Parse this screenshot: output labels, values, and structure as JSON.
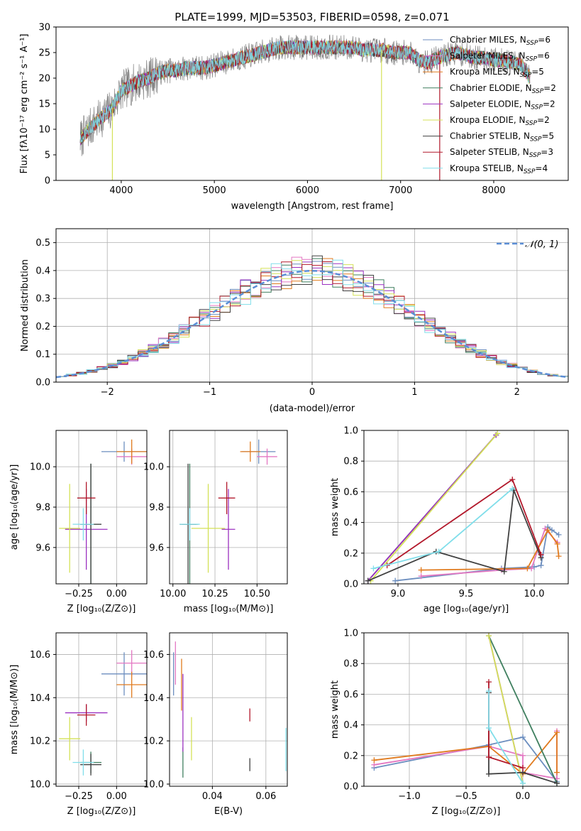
{
  "figure": {
    "background": "#ffffff"
  },
  "chart_data": [
    {
      "id": "spectrum",
      "type": "line",
      "title": "PLATE=1999, MJD=53503, FIBERID=0598, z=0.071",
      "xlabel": "wavelength [Angstrom, rest frame]",
      "ylabel": "Flux [fλ10⁻¹⁷ erg cm⁻² s⁻¹ A⁻¹]",
      "xlim": [
        3300,
        8800
      ],
      "ylim": [
        0,
        30
      ],
      "xticks": [
        4000,
        5000,
        6000,
        7000,
        8000
      ],
      "yticks": [
        0,
        5,
        10,
        15,
        20,
        25,
        30
      ],
      "grid": false,
      "legend_position": "upper right",
      "data_color": "#808080",
      "data_range": [
        3560,
        8390
      ],
      "continuum": {
        "x": [
          3560,
          3650,
          3800,
          3900,
          4000,
          4100,
          4200,
          4300,
          4400,
          4500,
          4600,
          4700,
          4800,
          4900,
          5000,
          5100,
          5200,
          5300,
          5400,
          5500,
          5600,
          5700,
          5800,
          5900,
          6000,
          6100,
          6200,
          6300,
          6400,
          6500,
          6600,
          6700,
          6800,
          6900,
          7000,
          7100,
          7200,
          7300,
          7400,
          7500,
          7600,
          7700,
          7800,
          7900,
          8000,
          8100,
          8200,
          8300,
          8390
        ],
        "y": [
          8,
          10,
          12.5,
          14,
          17.5,
          18.5,
          19.5,
          20,
          21,
          21.5,
          21.5,
          22,
          22,
          22,
          22.5,
          23,
          23.5,
          24,
          24.5,
          25,
          25.5,
          26,
          26,
          26,
          26,
          26,
          26,
          26,
          26,
          26,
          25.5,
          25.5,
          25.5,
          25,
          25,
          25,
          23.5,
          23,
          24,
          24.5,
          25,
          24.5,
          24,
          24,
          23.5,
          23.5,
          23,
          22.5,
          20
        ]
      },
      "series": [
        {
          "name": "Chabrier MILES, N_SSP=6",
          "nssp": 6,
          "color": "#6c8ebf"
        },
        {
          "name": "Salpeter MILES, N_SSP=6",
          "nssp": 6,
          "color": "#e377c2"
        },
        {
          "name": "Kroupa MILES, N_SSP=5",
          "nssp": 5,
          "color": "#e07b1f"
        },
        {
          "name": "Chabrier ELODIE, N_SSP=2",
          "nssp": 2,
          "color": "#3f7f5f"
        },
        {
          "name": "Salpeter ELODIE, N_SSP=2",
          "nssp": 2,
          "color": "#9b30c0"
        },
        {
          "name": "Kroupa ELODIE, N_SSP=2",
          "nssp": 2,
          "color": "#d4e157"
        },
        {
          "name": "Chabrier STELIB, N_SSP=5",
          "nssp": 5,
          "color": "#404040"
        },
        {
          "name": "Salpeter STELIB, N_SSP=3",
          "nssp": 3,
          "color": "#b2182b"
        },
        {
          "name": "Kroupa STELIB, N_SSP=4",
          "nssp": 4,
          "color": "#80deea"
        }
      ],
      "legend": [
        {
          "pre": "Chabrier MILES, N",
          "sub": "SSP",
          "post": "=6"
        },
        {
          "pre": "Salpeter MILES, N",
          "sub": "SSP",
          "post": "=6"
        },
        {
          "pre": "Kroupa MILES, N",
          "sub": "SSP",
          "post": "=5"
        },
        {
          "pre": "Chabrier ELODIE, N",
          "sub": "SSP",
          "post": "=2"
        },
        {
          "pre": "Salpeter ELODIE, N",
          "sub": "SSP",
          "post": "=2"
        },
        {
          "pre": "Kroupa ELODIE, N",
          "sub": "SSP",
          "post": "=2"
        },
        {
          "pre": "Chabrier STELIB, N",
          "sub": "SSP",
          "post": "=5"
        },
        {
          "pre": "Salpeter STELIB, N",
          "sub": "SSP",
          "post": "=3"
        },
        {
          "pre": "Kroupa STELIB, N",
          "sub": "SSP",
          "post": "=4"
        }
      ],
      "spikes": [
        {
          "x": 3905,
          "y_bottom": 0,
          "color": "#d4e157"
        },
        {
          "x": 6795,
          "y_bottom": 0,
          "color": "#d4e157"
        },
        {
          "x": 7420,
          "y_bottom": 0,
          "color": "#b2182b"
        }
      ]
    },
    {
      "id": "residuals",
      "type": "area",
      "xlabel": "(data-model)/error",
      "ylabel": "Normed distribution",
      "xlim": [
        -2.5,
        2.5
      ],
      "ylim": [
        0,
        0.55
      ],
      "xticks": [
        -2,
        -1,
        0,
        1,
        2
      ],
      "xtick_labels": [
        "−2",
        "−1",
        "0",
        "1",
        "2"
      ],
      "yticks": [
        0,
        0.1,
        0.2,
        0.3,
        0.4,
        0.5
      ],
      "ytick_labels": [
        "0.0",
        "0.1",
        "0.2",
        "0.3",
        "0.4",
        "0.5"
      ],
      "grid": true,
      "legend_position": "upper right",
      "legend_label": "𝒩(0, 1)",
      "gaussian": {
        "mu": 0,
        "sigma": 1,
        "color": "#5b8ed6",
        "dashed": true
      },
      "bin_width": 0.1,
      "bin_start": -2.5
    },
    {
      "id": "age-vs-Z",
      "type": "scatter",
      "xlabel": "Z [log₁₀(Z/Z⊙)]",
      "ylabel": "age  [log₁₀(age/yr)]",
      "xlim": [
        -0.4,
        0.2
      ],
      "ylim": [
        9.42,
        10.18
      ],
      "xticks": [
        -0.25,
        0.0
      ],
      "xtick_labels": [
        "−0.25",
        "0.00"
      ],
      "yticks": [
        9.6,
        9.8,
        10.0
      ],
      "ytick_labels": [
        "9.6",
        "9.8",
        "10.0"
      ],
      "grid": true,
      "points": [
        {
          "x": 0.05,
          "y": 10.075,
          "xerr": 0.15,
          "yerr": 0.05,
          "color": "#6c8ebf"
        },
        {
          "x": 0.1,
          "y": 10.05,
          "xerr": 0.1,
          "yerr": 0.04,
          "color": "#e377c2"
        },
        {
          "x": 0.1,
          "y": 10.075,
          "xerr": 0.1,
          "yerr": 0.06,
          "color": "#e07b1f"
        },
        {
          "x": -0.17,
          "y": 9.715,
          "xerr": 0.07,
          "yerr": 0.3,
          "color": "#3f7f5f"
        },
        {
          "x": -0.2,
          "y": 9.69,
          "xerr": 0.14,
          "yerr": 0.2,
          "color": "#9b30c0"
        },
        {
          "x": -0.31,
          "y": 9.695,
          "xerr": 0.07,
          "yerr": 0.22,
          "color": "#d4e157"
        },
        {
          "x": -0.17,
          "y": 9.715,
          "xerr": 0.07,
          "yerr": 0.3,
          "color": "#404040"
        },
        {
          "x": -0.2,
          "y": 9.845,
          "xerr": 0.06,
          "yerr": 0.08,
          "color": "#b2182b"
        },
        {
          "x": -0.22,
          "y": 9.715,
          "xerr": 0.07,
          "yerr": 0.08,
          "color": "#80deea"
        }
      ]
    },
    {
      "id": "age-vs-mass",
      "type": "scatter",
      "xlabel": "mass [log₁₀(M/M⊙)]",
      "ylabel": "",
      "xlim": [
        9.98,
        10.68
      ],
      "ylim": [
        9.42,
        10.18
      ],
      "xticks": [
        10.0,
        10.25,
        10.5
      ],
      "xtick_labels": [
        "10.00",
        "10.25",
        "10.50"
      ],
      "yticks": [
        9.6,
        9.8,
        10.0
      ],
      "ytick_labels": [
        "9.6",
        "9.8",
        "10.0"
      ],
      "grid": true,
      "points": [
        {
          "x": 10.51,
          "y": 10.075,
          "xerr": 0.1,
          "yerr": 0.06,
          "color": "#6c8ebf"
        },
        {
          "x": 10.56,
          "y": 10.05,
          "xerr": 0.06,
          "yerr": 0.04,
          "color": "#e377c2"
        },
        {
          "x": 10.46,
          "y": 10.075,
          "xerr": 0.06,
          "yerr": 0.05,
          "color": "#e07b1f"
        },
        {
          "x": 10.1,
          "y": 9.715,
          "xerr": 0.05,
          "yerr": 0.3,
          "color": "#3f7f5f"
        },
        {
          "x": 10.33,
          "y": 9.69,
          "xerr": 0.04,
          "yerr": 0.2,
          "color": "#9b30c0"
        },
        {
          "x": 10.21,
          "y": 9.695,
          "xerr": 0.1,
          "yerr": 0.22,
          "color": "#d4e157"
        },
        {
          "x": 10.09,
          "y": 9.715,
          "xerr": 0.05,
          "yerr": 0.3,
          "color": "#404040"
        },
        {
          "x": 10.32,
          "y": 9.845,
          "xerr": 0.05,
          "yerr": 0.08,
          "color": "#b2182b"
        },
        {
          "x": 10.1,
          "y": 9.715,
          "xerr": 0.06,
          "yerr": 0.08,
          "color": "#80deea"
        }
      ]
    },
    {
      "id": "weight-vs-age",
      "type": "line",
      "xlabel": "age  [log₁₀(age/yr)]",
      "ylabel": "mass weight",
      "xlim": [
        8.75,
        10.25
      ],
      "ylim": [
        0,
        1
      ],
      "xticks": [
        9.0,
        9.5,
        10.0
      ],
      "xtick_labels": [
        "9.0",
        "9.5",
        "10.0"
      ],
      "yticks": [
        0,
        0.2,
        0.4,
        0.6,
        0.8,
        1.0
      ],
      "ytick_labels": [
        "0.0",
        "0.2",
        "0.4",
        "0.6",
        "0.8",
        "1.0"
      ],
      "grid": true,
      "series": [
        {
          "color": "#6c8ebf",
          "x": [
            8.98,
            9.76,
            10.0,
            10.05,
            10.1,
            10.13,
            10.18
          ],
          "y": [
            0.02,
            0.1,
            0.11,
            0.12,
            0.37,
            0.35,
            0.32
          ]
        },
        {
          "color": "#e377c2",
          "x": [
            9.17,
            9.76,
            9.98,
            10.08,
            10.17
          ],
          "y": [
            0.05,
            0.09,
            0.1,
            0.36,
            0.27
          ]
        },
        {
          "color": "#e07b1f",
          "x": [
            9.17,
            9.95,
            10.1,
            10.17,
            10.18
          ],
          "y": [
            0.09,
            0.1,
            0.35,
            0.26,
            0.18
          ]
        },
        {
          "color": "#3f7f5f",
          "x": [
            8.78,
            9.72
          ],
          "y": [
            0.02,
            0.97
          ]
        },
        {
          "color": "#9b30c0",
          "x": [
            8.78,
            9.72
          ],
          "y": [
            0.02,
            0.97
          ]
        },
        {
          "color": "#d4e157",
          "x": [
            8.8,
            9.73
          ],
          "y": [
            0.02,
            0.98
          ]
        },
        {
          "color": "#404040",
          "x": [
            8.78,
            9.28,
            9.78,
            9.85,
            10.05
          ],
          "y": [
            0.02,
            0.21,
            0.08,
            0.61,
            0.17
          ]
        },
        {
          "color": "#b2182b",
          "x": [
            8.92,
            9.84,
            10.05
          ],
          "y": [
            0.12,
            0.68,
            0.19
          ]
        },
        {
          "color": "#80deea",
          "x": [
            8.82,
            9.3,
            9.84
          ],
          "y": [
            0.1,
            0.21,
            0.62
          ]
        }
      ]
    },
    {
      "id": "mass-vs-Z",
      "type": "scatter",
      "xlabel": "Z [log₁₀(Z/Z⊙)]",
      "ylabel": "mass [log₁₀(M/M⊙)]",
      "xlim": [
        -0.4,
        0.2
      ],
      "ylim": [
        9.99,
        10.7
      ],
      "xticks": [
        -0.25,
        0.0
      ],
      "xtick_labels": [
        "−0.25",
        "0.00"
      ],
      "yticks": [
        10.0,
        10.2,
        10.4,
        10.6
      ],
      "ytick_labels": [
        "10.0",
        "10.2",
        "10.4",
        "10.6"
      ],
      "grid": true,
      "points": [
        {
          "x": 0.05,
          "y": 10.51,
          "xerr": 0.15,
          "yerr": 0.1,
          "color": "#6c8ebf"
        },
        {
          "x": 0.1,
          "y": 10.56,
          "xerr": 0.1,
          "yerr": 0.06,
          "color": "#e377c2"
        },
        {
          "x": 0.1,
          "y": 10.46,
          "xerr": 0.1,
          "yerr": 0.06,
          "color": "#e07b1f"
        },
        {
          "x": -0.17,
          "y": 10.1,
          "xerr": 0.07,
          "yerr": 0.05,
          "color": "#3f7f5f"
        },
        {
          "x": -0.2,
          "y": 10.33,
          "xerr": 0.14,
          "yerr": 0.04,
          "color": "#9b30c0"
        },
        {
          "x": -0.31,
          "y": 10.21,
          "xerr": 0.07,
          "yerr": 0.1,
          "color": "#d4e157"
        },
        {
          "x": -0.17,
          "y": 10.09,
          "xerr": 0.07,
          "yerr": 0.05,
          "color": "#404040"
        },
        {
          "x": -0.2,
          "y": 10.32,
          "xerr": 0.06,
          "yerr": 0.05,
          "color": "#b2182b"
        },
        {
          "x": -0.22,
          "y": 10.1,
          "xerr": 0.07,
          "yerr": 0.06,
          "color": "#80deea"
        }
      ]
    },
    {
      "id": "mass-vs-EBV",
      "type": "scatter",
      "xlabel": "E(B-V)",
      "ylabel": "",
      "xlim": [
        0.024,
        0.068
      ],
      "ylim": [
        9.99,
        10.7
      ],
      "xticks": [
        0.04,
        0.06
      ],
      "xtick_labels": [
        "0.04",
        "0.06"
      ],
      "yticks": [
        10.0,
        10.2,
        10.4,
        10.6
      ],
      "ytick_labels": [
        "10.0",
        "10.2",
        "10.4",
        "10.6"
      ],
      "grid": true,
      "points": [
        {
          "x": 0.0255,
          "y": 10.51,
          "xerr": 0,
          "yerr": 0.1,
          "color": "#6c8ebf"
        },
        {
          "x": 0.0262,
          "y": 10.56,
          "xerr": 0,
          "yerr": 0.1,
          "color": "#e377c2"
        },
        {
          "x": 0.0285,
          "y": 10.46,
          "xerr": 0,
          "yerr": 0.12,
          "color": "#e07b1f"
        },
        {
          "x": 0.029,
          "y": 10.1,
          "xerr": 0,
          "yerr": 0.07,
          "color": "#3f7f5f"
        },
        {
          "x": 0.029,
          "y": 10.33,
          "xerr": 0,
          "yerr": 0.18,
          "color": "#9b30c0"
        },
        {
          "x": 0.0322,
          "y": 10.21,
          "xerr": 0,
          "yerr": 0.1,
          "color": "#d4e157"
        },
        {
          "x": 0.054,
          "y": 10.09,
          "xerr": 0,
          "yerr": 0.03,
          "color": "#404040"
        },
        {
          "x": 0.054,
          "y": 10.32,
          "xerr": 0,
          "yerr": 0.03,
          "color": "#b2182b"
        },
        {
          "x": 0.0675,
          "y": 10.16,
          "xerr": 0,
          "yerr": 0.1,
          "color": "#80deea"
        }
      ]
    },
    {
      "id": "weight-vs-Z",
      "type": "line",
      "xlabel": "Z [log₁₀(Z/Z⊙)]",
      "ylabel": "mass weight",
      "xlim": [
        -1.4,
        0.4
      ],
      "ylim": [
        0,
        1
      ],
      "xticks": [
        -1.0,
        -0.5,
        0.0
      ],
      "xtick_labels": [
        "−1.0",
        "−0.5",
        "0.0"
      ],
      "yticks": [
        0,
        0.2,
        0.4,
        0.6,
        0.8,
        1.0
      ],
      "ytick_labels": [
        "0.0",
        "0.2",
        "0.4",
        "0.6",
        "0.8",
        "1.0"
      ],
      "grid": true,
      "series": [
        {
          "color": "#6c8ebf",
          "x": [
            -1.31,
            -0.3,
            0.0,
            0.3
          ],
          "y": [
            0.12,
            0.27,
            0.32,
            0.03
          ]
        },
        {
          "color": "#e377c2",
          "x": [
            -1.31,
            -0.3,
            0.0,
            0.0,
            0.3,
            0.3
          ],
          "y": [
            0.14,
            0.26,
            0.2,
            0.09,
            0.05,
            0.36
          ]
        },
        {
          "color": "#e07b1f",
          "x": [
            -1.31,
            -0.3,
            0.0,
            0.3,
            0.3
          ],
          "y": [
            0.17,
            0.26,
            0.08,
            0.35,
            0.09
          ]
        },
        {
          "color": "#3f7f5f",
          "x": [
            -0.3,
            0.3
          ],
          "y": [
            0.98,
            0.02
          ]
        },
        {
          "color": "#9b30c0",
          "x": [
            -0.3,
            0.0
          ],
          "y": [
            0.98,
            0.02
          ]
        },
        {
          "color": "#d4e157",
          "x": [
            -0.3,
            0.0
          ],
          "y": [
            0.98,
            0.02
          ]
        },
        {
          "color": "#404040",
          "x": [
            -0.3,
            -0.3,
            0.0,
            0.3
          ],
          "y": [
            0.61,
            0.08,
            0.09,
            0.02
          ]
        },
        {
          "color": "#b2182b",
          "x": [
            -0.3,
            -0.3,
            0.0
          ],
          "y": [
            0.68,
            0.19,
            0.12
          ]
        },
        {
          "color": "#80deea",
          "x": [
            -0.3,
            -0.3,
            0.0
          ],
          "y": [
            0.62,
            0.38,
            0.02
          ]
        }
      ]
    }
  ]
}
